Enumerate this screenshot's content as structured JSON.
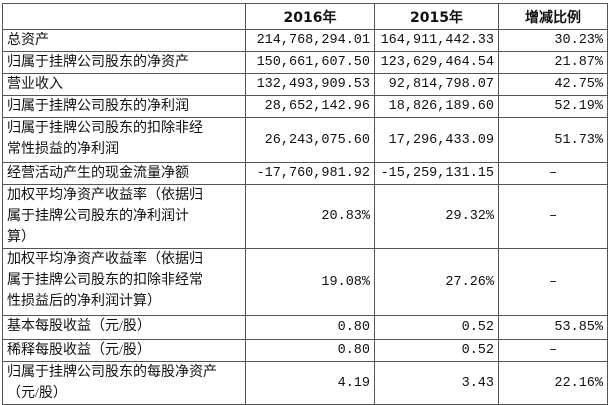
{
  "table": {
    "header": [
      "",
      "2016年",
      "2015年",
      "增减比例"
    ],
    "rows": [
      [
        [
          "总资产"
        ],
        "214,768,294.01",
        "164,911,442.33",
        "30.23%"
      ],
      [
        [
          "归属于挂牌公司股东的净资产"
        ],
        "150,661,607.50",
        "123,629,464.54",
        "21.87%"
      ],
      [
        [
          "营业收入"
        ],
        "132,493,909.53",
        "92,814,798.07",
        "42.75%"
      ],
      [
        [
          "归属于挂牌公司股东的净利润"
        ],
        "28,652,142.96",
        "18,826,189.60",
        "52.19%"
      ],
      [
        [
          "归属于挂牌公司股东的扣除非经",
          "常性损益的净利润"
        ],
        "26,243,075.60",
        "17,296,433.09",
        "51.73%"
      ],
      [
        [
          "经营活动产生的现金流量净额"
        ],
        "-17,760,981.92",
        "-15,259,131.15",
        "–"
      ],
      [
        [
          "加权平均净资产收益率（依据归",
          "属于挂牌公司股东的净利润计",
          "算）"
        ],
        "20.83%",
        "29.32%",
        "–"
      ],
      [
        [
          "加权平均净资产收益率（依据归",
          "属于挂牌公司股东的扣除非经常",
          "性损益后的净利润计算）"
        ],
        "19.08%",
        "27.26%",
        "–"
      ],
      [
        [
          "基本每股收益（元/股）"
        ],
        "0.80",
        "0.52",
        "53.85%"
      ],
      [
        [
          "稀释每股收益（元/股）"
        ],
        "0.80",
        "0.52",
        "–"
      ],
      [
        [
          "归属于挂牌公司股东的每股净资产",
          "（元/股）"
        ],
        "4.19",
        "3.43",
        "22.16%"
      ]
    ]
  }
}
